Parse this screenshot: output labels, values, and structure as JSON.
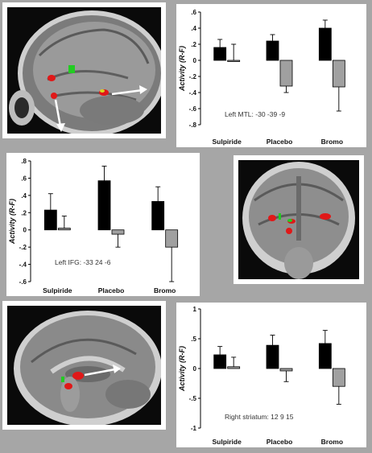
{
  "colors": {
    "background": "#a6a6a6",
    "bar_dark": "#000000",
    "bar_light": "#a0a0a0",
    "activation_red": "#e01818",
    "activation_green": "#22cc22",
    "arrow": "#ffffff"
  },
  "images": [
    {
      "view": "sagittal",
      "position": "top-left",
      "arrows": 2
    },
    {
      "view": "coronal",
      "position": "middle-right",
      "arrows": 0
    },
    {
      "view": "sagittal-medial",
      "position": "bottom-left",
      "arrows": 1
    }
  ],
  "chart_data": [
    {
      "type": "bar",
      "ylabel": "Activity (R-F)",
      "annotation": "Left MTL: -30 -39 -9",
      "categories": [
        "Sulpiride",
        "Placebo",
        "Bromo"
      ],
      "ylim": [
        -0.8,
        0.6
      ],
      "yticks": [
        -0.8,
        -0.6,
        -0.4,
        -0.2,
        0,
        0.2,
        0.4,
        0.6
      ],
      "yticklabels": [
        "-.8",
        "-.6",
        "-.4",
        "-.2",
        "0",
        ".2",
        ".4",
        ".6"
      ],
      "series": [
        {
          "values": [
            0.16,
            0.24,
            0.4
          ],
          "errors": [
            0.1,
            0.08,
            0.1
          ],
          "color": "#000000"
        },
        {
          "values": [
            0.0,
            -0.32,
            -0.33
          ],
          "errors": [
            0.2,
            0.08,
            0.3
          ],
          "color": "#a0a0a0"
        }
      ]
    },
    {
      "type": "bar",
      "ylabel": "Activity (R-F)",
      "annotation": "Left IFG: -33 24 -6",
      "categories": [
        "Sulpiride",
        "Placebo",
        "Bromo"
      ],
      "ylim": [
        -0.6,
        0.8
      ],
      "yticks": [
        -0.6,
        -0.4,
        -0.2,
        0,
        0.2,
        0.4,
        0.6,
        0.8
      ],
      "yticklabels": [
        "-.6",
        "-.4",
        "-.2",
        "0",
        ".2",
        ".4",
        ".6",
        ".8"
      ],
      "series": [
        {
          "values": [
            0.23,
            0.57,
            0.33
          ],
          "errors": [
            0.19,
            0.17,
            0.17
          ],
          "color": "#000000"
        },
        {
          "values": [
            0.02,
            -0.05,
            -0.2
          ],
          "errors": [
            0.14,
            0.15,
            0.4
          ],
          "color": "#a0a0a0"
        }
      ]
    },
    {
      "type": "bar",
      "ylabel": "Activity (R-F)",
      "annotation": "Right striatum: 12 9 15",
      "categories": [
        "Sulpiride",
        "Placebo",
        "Bromo"
      ],
      "ylim": [
        -1,
        1
      ],
      "yticks": [
        -1,
        -0.5,
        0,
        0.5,
        1
      ],
      "yticklabels": [
        "-1",
        "-.5",
        "0",
        ".5",
        "1"
      ],
      "series": [
        {
          "values": [
            0.23,
            0.39,
            0.42
          ],
          "errors": [
            0.14,
            0.17,
            0.22
          ],
          "color": "#000000"
        },
        {
          "values": [
            0.03,
            -0.04,
            -0.3
          ],
          "errors": [
            0.16,
            0.18,
            0.3
          ],
          "color": "#a0a0a0"
        }
      ]
    }
  ]
}
